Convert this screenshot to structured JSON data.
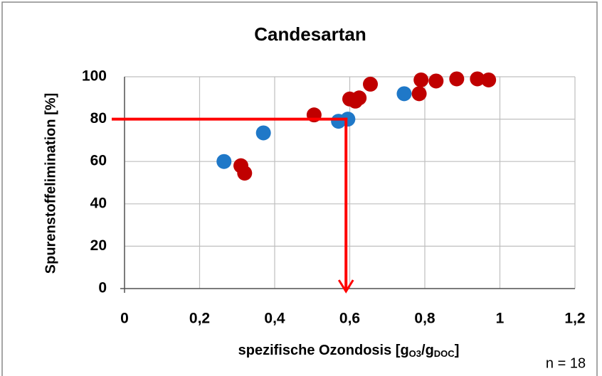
{
  "chart_data": {
    "type": "scatter",
    "title": "Candesartan",
    "ylabel": "Spurenstoffelimination [%]",
    "xlabel_parts": [
      "spezifische Ozondosis [g",
      "O3",
      "/g",
      "DOC",
      "]"
    ],
    "annotation": "n = 18",
    "series": [
      {
        "color": "#1f78c8",
        "x": [
          0.265,
          0.37,
          0.57,
          0.595,
          0.745
        ],
        "values": [
          60,
          73.5,
          79,
          80,
          92
        ]
      },
      {
        "color": "#c00000",
        "x": [
          0.31,
          0.32,
          0.505,
          0.6,
          0.615,
          0.625,
          0.655,
          0.785,
          0.79,
          0.83,
          0.885,
          0.94,
          0.97
        ],
        "values": [
          58,
          54.5,
          82,
          89.5,
          88.5,
          90,
          96.5,
          92,
          98.5,
          98,
          99,
          99,
          98.5
        ]
      }
    ],
    "guide": {
      "x": 0.59,
      "y": 80,
      "color": "#ff0000"
    },
    "xlim": [
      0,
      1.2
    ],
    "ylim": [
      0,
      100
    ],
    "xticks": [
      0,
      {
        "value": 0.2,
        "label": "0,2"
      },
      {
        "value": 0.4,
        "label": "0,4"
      },
      {
        "value": 0.6,
        "label": "0,6"
      },
      {
        "value": 0.8,
        "label": "0,8"
      },
      1,
      {
        "value": 1.2,
        "label": "1,2"
      }
    ],
    "yticks": [
      0,
      20,
      40,
      60,
      80,
      100
    ],
    "grid": true
  }
}
